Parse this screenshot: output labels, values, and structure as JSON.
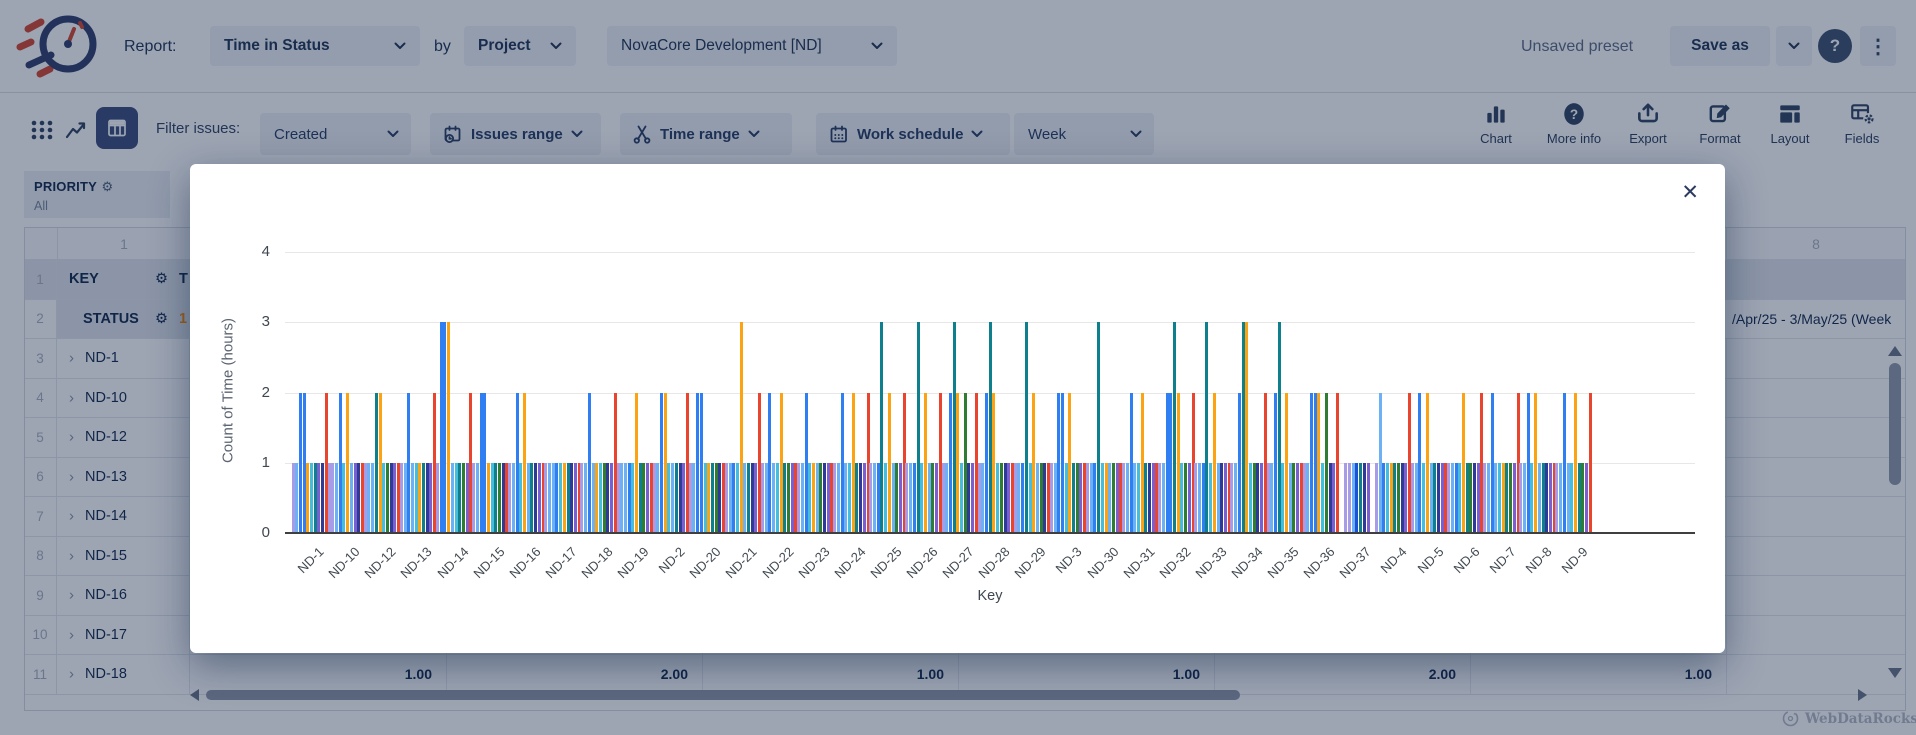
{
  "header": {
    "report_label": "Report:",
    "report_type": "Time in Status",
    "by_label": "by",
    "group_by": "Project",
    "project": "NovaCore Development [ND]",
    "preset_status": "Unsaved preset",
    "save_as_label": "Save as"
  },
  "toolbar": {
    "filter_label": "Filter issues:",
    "created_label": "Created",
    "issues_range_label": "Issues range",
    "time_range_label": "Time range",
    "work_schedule_label": "Work schedule",
    "week_label": "Week",
    "right_actions": [
      {
        "label": "Chart",
        "icon": "bar-chart-icon"
      },
      {
        "label": "More info",
        "icon": "help-icon"
      },
      {
        "label": "Export",
        "icon": "export-icon"
      },
      {
        "label": "Format",
        "icon": "format-icon"
      },
      {
        "label": "Layout",
        "icon": "layout-icon"
      },
      {
        "label": "Fields",
        "icon": "fields-icon"
      }
    ]
  },
  "glyphs": {
    "gear": "⚙",
    "chevron_right": "›",
    "close": "✕",
    "kebab": "⋮",
    "help": "?"
  },
  "pivot": {
    "filter_cell": {
      "title": "PRIORITY",
      "value": "All"
    },
    "col_header_first": "1",
    "col_header_last": "8",
    "rows": [
      {
        "num": "1",
        "label": "KEY",
        "type": "key",
        "partial": "T"
      },
      {
        "num": "2",
        "label": "STATUS",
        "type": "status",
        "partial": "1",
        "date_fragment": "/Apr/25 - 3/May/25 (Week"
      },
      {
        "num": "3",
        "label": "ND-1",
        "type": "issue"
      },
      {
        "num": "4",
        "label": "ND-10",
        "type": "issue"
      },
      {
        "num": "5",
        "label": "ND-12",
        "type": "issue"
      },
      {
        "num": "6",
        "label": "ND-13",
        "type": "issue"
      },
      {
        "num": "7",
        "label": "ND-14",
        "type": "issue"
      },
      {
        "num": "8",
        "label": "ND-15",
        "type": "issue"
      },
      {
        "num": "9",
        "label": "ND-16",
        "type": "issue"
      },
      {
        "num": "10",
        "label": "ND-17",
        "type": "issue"
      },
      {
        "num": "11",
        "label": "ND-18",
        "type": "issue",
        "values": [
          "1.00",
          "2.00",
          "1.00",
          "1.00",
          "2.00",
          "1.00"
        ]
      }
    ],
    "watermark": "WebDataRocks"
  },
  "chart_data": {
    "type": "bar",
    "title": "",
    "xlabel": "Key",
    "ylabel": "Count of Time (hours)",
    "ylim": [
      0,
      4
    ],
    "yticks": [
      "0",
      "1",
      "2",
      "3",
      "4"
    ],
    "grid": true,
    "legend": "none",
    "categories": [
      "ND-1",
      "ND-10",
      "ND-12",
      "ND-13",
      "ND-14",
      "ND-15",
      "ND-16",
      "ND-17",
      "ND-18",
      "ND-19",
      "ND-2",
      "ND-20",
      "ND-21",
      "ND-22",
      "ND-23",
      "ND-24",
      "ND-25",
      "ND-26",
      "ND-27",
      "ND-28",
      "ND-29",
      "ND-3",
      "ND-30",
      "ND-31",
      "ND-32",
      "ND-33",
      "ND-34",
      "ND-35",
      "ND-36",
      "ND-37",
      "ND-4",
      "ND-5",
      "ND-6",
      "ND-7",
      "ND-8",
      "ND-9"
    ],
    "palette": {
      "L": "#a89ce6",
      "S": "#6db1f5",
      "B": "#2f7ff2",
      "C": "#45bede",
      "T": "#0e7f8d",
      "G": "#2e7d32",
      "N": "#2d3a96",
      "P": "#7a5fd0",
      "O": "#fba313",
      "R": "#e8442e",
      "D": "#1d4fd7"
    },
    "groups_note": "each bar encoded as colorCode+height in hours",
    "groups": [
      [
        "L1",
        "S1",
        "B2",
        "B2",
        "O1",
        "C1",
        "T1",
        "P1",
        "N1",
        "R2"
      ],
      [
        "L1",
        "L1",
        "S1",
        "B2",
        "C1",
        "O2",
        "S1",
        "P1",
        "N1",
        "R1"
      ],
      [
        "L1",
        "S1",
        "S1",
        "T2",
        "O2",
        "C1",
        "G1",
        "N1",
        "P1",
        "R1"
      ],
      [
        "L1",
        "S1",
        "B2",
        "S1",
        "C1",
        "O1",
        "T1",
        "N1",
        "P1",
        "R2"
      ],
      [
        "L1",
        "B3",
        "B3",
        "O3",
        "S1",
        "C1",
        "T1",
        "G1",
        "P1",
        "R2"
      ],
      [
        "L1",
        "S1",
        "B2",
        "B2",
        "O1",
        "C1",
        "T1",
        "G1",
        "N1",
        "R1"
      ],
      [
        "L1",
        "S1",
        "B2",
        "C1",
        "O2",
        "S1",
        "T1",
        "N1",
        "P1",
        "R1"
      ],
      [
        "L1",
        "S1",
        "S1",
        "B1",
        "C1",
        "O1",
        "T1",
        "N1",
        "P1",
        "R1"
      ],
      [
        "L1",
        "S1",
        "B2",
        "S1",
        "O1",
        "C1",
        "G1",
        "N1",
        "P1",
        "R2"
      ],
      [
        "L1",
        "S1",
        "S1",
        "B1",
        "C1",
        "O2",
        "T1",
        "G1",
        "P1",
        "R1"
      ],
      [
        "L1",
        "S1",
        "B2",
        "O2",
        "C1",
        "S1",
        "T1",
        "N1",
        "P1",
        "R2"
      ],
      [
        "L1",
        "S1",
        "B2",
        "B2",
        "C1",
        "O1",
        "T1",
        "G1",
        "N1",
        "R1"
      ],
      [
        "L1",
        "S1",
        "B1",
        "C1",
        "O3",
        "S1",
        "T1",
        "N1",
        "P1",
        "R2"
      ],
      [
        "L1",
        "S1",
        "B2",
        "S1",
        "C1",
        "O2",
        "T1",
        "G1",
        "P1",
        "R1"
      ],
      [
        "L1",
        "S1",
        "B2",
        "C1",
        "O1",
        "S1",
        "G1",
        "N1",
        "P1",
        "R1"
      ],
      [
        "L1",
        "S1",
        "B2",
        "S1",
        "C1",
        "O2",
        "T1",
        "N1",
        "P1",
        "R2"
      ],
      [
        "L1",
        "S1",
        "B1",
        "T3",
        "C1",
        "O2",
        "S1",
        "G1",
        "P1",
        "R2"
      ],
      [
        "L1",
        "S1",
        "B1",
        "T3",
        "C1",
        "O2",
        "S1",
        "G1",
        "P1",
        "R2"
      ],
      [
        "L1",
        "S1",
        "B2",
        "T3",
        "O2",
        "C1",
        "G2",
        "N1",
        "P1",
        "R2"
      ],
      [
        "L1",
        "S1",
        "B2",
        "T3",
        "O2",
        "C1",
        "G1",
        "N1",
        "P1",
        "R1"
      ],
      [
        "L1",
        "S1",
        "B1",
        "T3",
        "C1",
        "O2",
        "S1",
        "G1",
        "N1",
        "R1"
      ],
      [
        "L1",
        "S1",
        "B2",
        "B2",
        "C1",
        "O2",
        "T1",
        "G1",
        "P1",
        "R1"
      ],
      [
        "L1",
        "S1",
        "B1",
        "T3",
        "C1",
        "O1",
        "S1",
        "G1",
        "P1",
        "R1"
      ],
      [
        "L1",
        "S1",
        "B2",
        "S1",
        "C1",
        "O2",
        "T1",
        "N1",
        "P1",
        "R1"
      ],
      [
        "L1",
        "S1",
        "B2",
        "B2",
        "T3",
        "O2",
        "C1",
        "G1",
        "P1",
        "R2"
      ],
      [
        "L1",
        "S1",
        "B1",
        "T3",
        "C1",
        "O2",
        "S1",
        "N1",
        "P1",
        "R1"
      ],
      [
        "L1",
        "S1",
        "B2",
        "T3",
        "O3",
        "C1",
        "G1",
        "N1",
        "P1",
        "R2"
      ],
      [
        "L1",
        "S1",
        "B2",
        "T3",
        "C1",
        "O2",
        "S1",
        "G1",
        "P1",
        "R1"
      ],
      [
        "L1",
        "S1",
        "B2",
        "B2",
        "O2",
        "C1",
        "G2",
        "N1",
        "P1",
        "R2"
      ],
      [
        "L1",
        "L1",
        "S1",
        "D1",
        "T1",
        "N1",
        "P1"
      ],
      [
        "L1",
        "S2",
        "B1",
        "C1",
        "O1",
        "T1",
        "G1",
        "N1",
        "P1",
        "R2"
      ],
      [
        "L1",
        "S1",
        "B2",
        "C1",
        "O2",
        "S1",
        "T1",
        "N1",
        "P1",
        "R1"
      ],
      [
        "L1",
        "S1",
        "B1",
        "C1",
        "O2",
        "T1",
        "G1",
        "N1",
        "P1",
        "R2"
      ],
      [
        "L1",
        "S1",
        "B2",
        "S1",
        "C1",
        "O1",
        "T1",
        "G1",
        "P1",
        "R2"
      ],
      [
        "L1",
        "S1",
        "B2",
        "C1",
        "O2",
        "S1",
        "T1",
        "N1",
        "P1",
        "R1"
      ],
      [
        "L1",
        "S1",
        "B2",
        "S1",
        "C1",
        "O2",
        "T1",
        "G1",
        "P1",
        "R2"
      ]
    ]
  }
}
